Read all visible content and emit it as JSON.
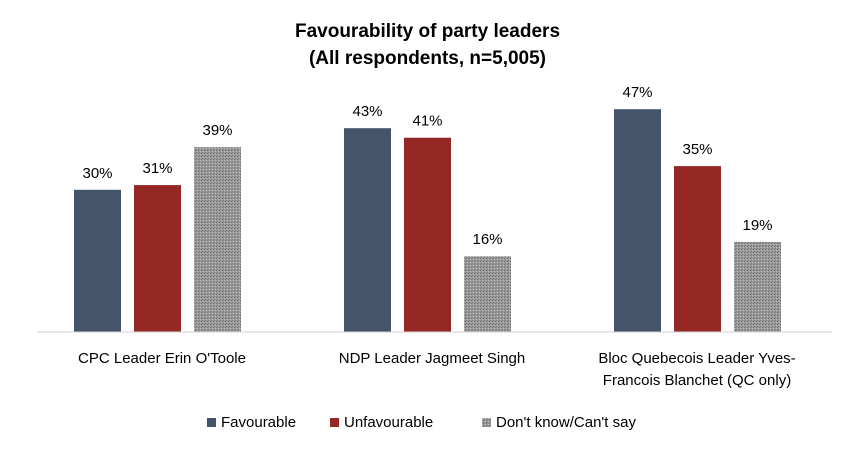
{
  "chart_data": {
    "type": "bar",
    "title": "Favourability of party leaders",
    "subtitle": "(All respondents, n=5,005)",
    "categories": [
      [
        "CPC Leader Erin O'Toole"
      ],
      [
        "NDP Leader Jagmeet Singh"
      ],
      [
        "Bloc Quebecois Leader Yves-",
        "Francois Blanchet (QC only)"
      ]
    ],
    "series": [
      {
        "name": "Favourable",
        "values": [
          30,
          43,
          47
        ],
        "labels": [
          "30%",
          "43%",
          "47%"
        ],
        "color": "#44546a"
      },
      {
        "name": "Unfavourable",
        "values": [
          31,
          41,
          35
        ],
        "labels": [
          "31%",
          "41%",
          "35%"
        ],
        "color": "#952825"
      },
      {
        "name": "Don't know/Can't say",
        "values": [
          39,
          16,
          19
        ],
        "labels": [
          "39%",
          "16%",
          "19%"
        ],
        "color": "#8c8c8c"
      }
    ],
    "ylim": [
      0,
      50
    ],
    "grid": false,
    "legend_position": "bottom"
  }
}
